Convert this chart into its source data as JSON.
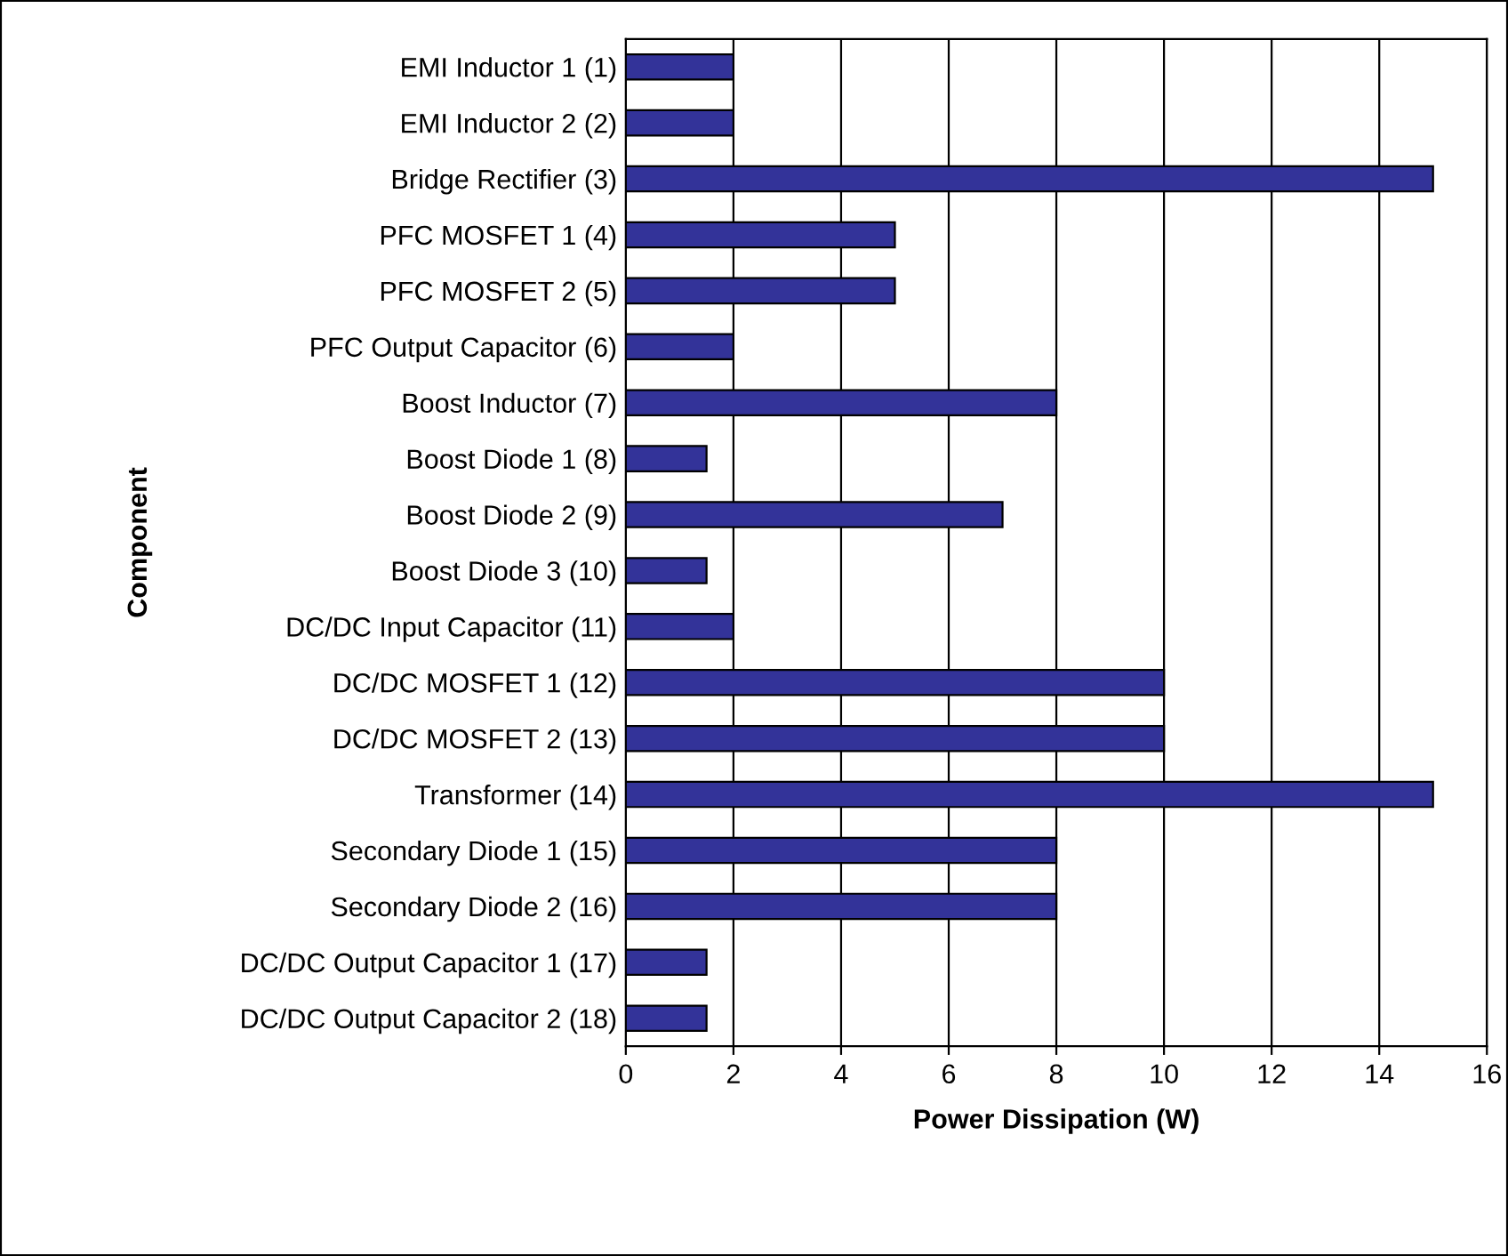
{
  "chart_data": {
    "type": "bar",
    "orientation": "horizontal",
    "xlabel": "Power Dissipation (W)",
    "ylabel": "Component",
    "categories": [
      "EMI Inductor 1 (1)",
      "EMI Inductor 2 (2)",
      "Bridge Rectifier (3)",
      "PFC MOSFET 1 (4)",
      "PFC MOSFET 2 (5)",
      "PFC Output Capacitor (6)",
      "Boost Inductor (7)",
      "Boost Diode 1 (8)",
      "Boost Diode 2 (9)",
      "Boost Diode 3 (10)",
      "DC/DC Input Capacitor (11)",
      "DC/DC MOSFET 1 (12)",
      "DC/DC MOSFET 2 (13)",
      "Transformer (14)",
      "Secondary Diode 1 (15)",
      "Secondary Diode 2 (16)",
      "DC/DC Output Capacitor 1 (17)",
      "DC/DC Output Capacitor 2 (18)"
    ],
    "values": [
      2,
      2,
      15,
      5,
      5,
      2,
      8,
      1.5,
      7,
      1.5,
      2,
      10,
      10,
      15,
      8,
      8,
      1.5,
      1.5
    ],
    "color": "#333399",
    "xlim": [
      0,
      16
    ],
    "xticks": [
      0,
      2,
      4,
      6,
      8,
      10,
      12,
      14,
      16
    ],
    "grid": "x"
  }
}
